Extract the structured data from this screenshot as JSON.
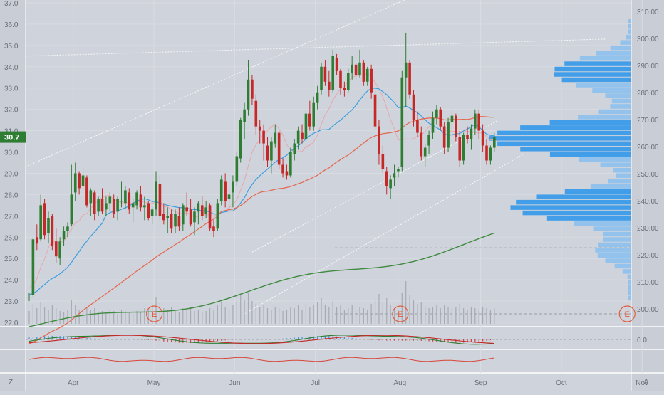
{
  "chart_data": {
    "type": "candlestick",
    "last_price_label": "30.7",
    "left_axis": {
      "ticks": [
        "22.0",
        "23.0",
        "24.0",
        "25.0",
        "26.0",
        "27.0",
        "28.0",
        "29.0",
        "30.0",
        "31.0",
        "32.0",
        "33.0",
        "34.0",
        "35.0",
        "36.0",
        "37.0"
      ],
      "ylim": [
        22.0,
        37.0
      ]
    },
    "right_axis": {
      "ticks": [
        "200.00",
        "210.00",
        "220.00",
        "230.00",
        "240.00",
        "250.00",
        "260.00",
        "270.00",
        "280.00",
        "290.00",
        "300.00",
        "310.00"
      ],
      "ylim": [
        200,
        310
      ]
    },
    "macd_axis": {
      "ticks": [
        "0.0"
      ]
    },
    "x_axis": {
      "months": [
        "Apr",
        "May",
        "Jun",
        "Jul",
        "Aug",
        "Sep",
        "Oct",
        "Nov"
      ],
      "month_day_index": [
        12,
        33,
        54,
        75,
        97,
        118,
        139,
        160
      ]
    },
    "earnings_markers": [
      {
        "label": "E",
        "day": 32
      },
      {
        "label": "E",
        "day": 96
      },
      {
        "label": "E",
        "day": 155
      }
    ],
    "corner_labels": {
      "left": "Z",
      "right": "A"
    },
    "candles": [
      [
        23.2,
        23.4,
        23.0,
        23.2
      ],
      [
        23.3,
        26.0,
        23.2,
        25.9
      ],
      [
        26.0,
        26.6,
        25.4,
        25.7
      ],
      [
        25.9,
        28.0,
        25.8,
        27.5
      ],
      [
        27.6,
        27.8,
        25.9,
        26.1
      ],
      [
        26.2,
        27.2,
        25.7,
        26.9
      ],
      [
        27.0,
        27.1,
        25.4,
        25.6
      ],
      [
        25.8,
        26.4,
        24.8,
        25.1
      ],
      [
        25.0,
        26.0,
        24.7,
        25.8
      ],
      [
        25.9,
        26.5,
        25.6,
        26.3
      ],
      [
        26.3,
        26.7,
        26.0,
        26.5
      ],
      [
        26.6,
        29.4,
        26.5,
        28.0
      ],
      [
        28.1,
        29.5,
        27.7,
        29.0
      ],
      [
        29.0,
        29.1,
        28.0,
        28.3
      ],
      [
        28.4,
        29.3,
        28.2,
        28.9
      ],
      [
        28.8,
        28.9,
        27.4,
        27.5
      ],
      [
        27.6,
        28.3,
        27.0,
        28.2
      ],
      [
        28.1,
        28.2,
        26.8,
        27.1
      ],
      [
        27.2,
        27.9,
        27.0,
        27.8
      ],
      [
        27.8,
        28.3,
        27.1,
        27.2
      ],
      [
        27.3,
        27.9,
        27.0,
        27.6
      ],
      [
        27.6,
        28.1,
        27.2,
        27.9
      ],
      [
        27.8,
        28.0,
        26.9,
        27.1
      ],
      [
        27.2,
        27.9,
        26.8,
        27.8
      ],
      [
        27.7,
        28.6,
        27.4,
        27.7
      ],
      [
        27.6,
        28.4,
        27.3,
        28.2
      ],
      [
        28.1,
        28.3,
        27.1,
        27.3
      ],
      [
        27.4,
        27.8,
        26.7,
        27.6
      ],
      [
        27.5,
        28.2,
        27.3,
        28.1
      ],
      [
        28.0,
        28.4,
        27.2,
        27.4
      ],
      [
        27.4,
        27.9,
        26.8,
        27.5
      ],
      [
        27.6,
        27.7,
        26.8,
        26.9
      ],
      [
        27.0,
        27.4,
        26.6,
        27.3
      ],
      [
        27.3,
        29.1,
        27.0,
        28.6
      ],
      [
        28.5,
        28.9,
        26.8,
        27.0
      ],
      [
        27.1,
        27.6,
        26.6,
        26.8
      ],
      [
        26.9,
        27.4,
        26.2,
        27.0
      ],
      [
        27.1,
        27.3,
        26.2,
        26.4
      ],
      [
        26.5,
        27.3,
        26.2,
        27.1
      ],
      [
        27.0,
        27.4,
        26.3,
        26.5
      ],
      [
        26.6,
        27.6,
        26.3,
        27.5
      ],
      [
        27.4,
        28.1,
        27.0,
        27.2
      ],
      [
        27.3,
        27.8,
        26.5,
        26.6
      ],
      [
        26.7,
        27.4,
        26.1,
        27.2
      ],
      [
        27.2,
        27.7,
        26.6,
        27.6
      ],
      [
        27.5,
        27.9,
        26.8,
        27.0
      ],
      [
        27.1,
        27.7,
        26.9,
        27.4
      ],
      [
        27.5,
        27.6,
        26.3,
        26.4
      ],
      [
        26.5,
        26.8,
        26.0,
        26.3
      ],
      [
        26.4,
        27.8,
        26.3,
        27.6
      ],
      [
        27.7,
        28.9,
        27.5,
        28.7
      ],
      [
        28.6,
        29.0,
        27.4,
        27.7
      ],
      [
        27.8,
        28.3,
        27.2,
        28.0
      ],
      [
        28.1,
        28.9,
        27.4,
        28.6
      ],
      [
        28.6,
        30.0,
        28.4,
        29.8
      ],
      [
        29.7,
        31.6,
        29.5,
        31.5
      ],
      [
        31.4,
        32.3,
        30.6,
        32.0
      ],
      [
        32.0,
        34.3,
        31.7,
        33.4
      ],
      [
        33.4,
        33.6,
        32.2,
        32.5
      ],
      [
        32.4,
        32.7,
        30.8,
        31.2
      ],
      [
        31.2,
        31.5,
        30.4,
        31.0
      ],
      [
        31.0,
        31.3,
        29.6,
        30.4
      ],
      [
        30.3,
        30.7,
        29.3,
        29.6
      ],
      [
        29.6,
        30.7,
        29.0,
        30.5
      ],
      [
        30.4,
        31.3,
        30.2,
        30.9
      ],
      [
        30.9,
        31.0,
        29.2,
        29.4
      ],
      [
        29.4,
        29.7,
        28.8,
        29.0
      ],
      [
        29.1,
        29.4,
        28.7,
        28.9
      ],
      [
        28.9,
        30.2,
        28.8,
        30.0
      ],
      [
        29.9,
        30.6,
        29.6,
        30.4
      ],
      [
        30.4,
        31.2,
        30.1,
        31.0
      ],
      [
        30.9,
        31.3,
        30.4,
        30.6
      ],
      [
        30.6,
        32.0,
        30.5,
        31.8
      ],
      [
        31.8,
        32.4,
        31.0,
        31.2
      ],
      [
        31.2,
        32.6,
        31.0,
        32.3
      ],
      [
        32.3,
        33.1,
        32.0,
        32.8
      ],
      [
        32.9,
        34.2,
        32.7,
        34.0
      ],
      [
        34.0,
        34.3,
        33.1,
        33.3
      ],
      [
        33.3,
        33.8,
        32.6,
        32.9
      ],
      [
        32.9,
        34.8,
        32.8,
        34.5
      ],
      [
        34.4,
        34.6,
        33.6,
        33.8
      ],
      [
        33.8,
        33.9,
        32.7,
        33.0
      ],
      [
        33.0,
        33.3,
        32.6,
        32.9
      ],
      [
        32.9,
        33.9,
        32.8,
        33.7
      ],
      [
        33.7,
        34.5,
        33.4,
        34.1
      ],
      [
        34.1,
        34.2,
        33.4,
        33.6
      ],
      [
        33.6,
        34.8,
        33.5,
        34.2
      ],
      [
        34.2,
        34.3,
        33.1,
        33.3
      ],
      [
        33.3,
        34.0,
        33.1,
        33.9
      ],
      [
        33.9,
        34.1,
        32.5,
        32.8
      ],
      [
        32.7,
        32.9,
        31.0,
        31.2
      ],
      [
        31.2,
        31.5,
        29.4,
        29.9
      ],
      [
        29.9,
        30.3,
        29.0,
        29.2
      ],
      [
        29.1,
        29.3,
        28.0,
        28.4
      ],
      [
        28.3,
        28.9,
        27.8,
        28.7
      ],
      [
        28.8,
        29.4,
        28.4,
        29.0
      ],
      [
        29.1,
        29.3,
        28.8,
        29.2
      ],
      [
        29.3,
        33.8,
        29.1,
        33.5
      ],
      [
        33.5,
        35.6,
        32.1,
        34.2
      ],
      [
        34.2,
        34.3,
        32.5,
        32.7
      ],
      [
        32.7,
        32.9,
        31.2,
        31.5
      ],
      [
        31.5,
        31.9,
        30.7,
        30.9
      ],
      [
        30.9,
        31.2,
        29.6,
        29.8
      ],
      [
        29.8,
        30.4,
        29.3,
        30.2
      ],
      [
        30.3,
        31.0,
        29.9,
        30.8
      ],
      [
        30.9,
        31.9,
        30.6,
        31.6
      ],
      [
        31.6,
        32.2,
        31.3,
        32.0
      ],
      [
        32.0,
        32.1,
        31.0,
        31.2
      ],
      [
        31.2,
        31.4,
        29.9,
        30.2
      ],
      [
        30.2,
        31.6,
        30.0,
        31.4
      ],
      [
        31.4,
        32.0,
        31.0,
        31.7
      ],
      [
        31.7,
        31.8,
        30.5,
        30.7
      ],
      [
        30.7,
        31.0,
        29.3,
        29.6
      ],
      [
        29.6,
        30.9,
        29.4,
        30.8
      ],
      [
        30.8,
        31.2,
        30.4,
        30.6
      ],
      [
        30.6,
        31.3,
        30.1,
        31.1
      ],
      [
        31.1,
        32.0,
        30.8,
        31.8
      ],
      [
        31.8,
        32.0,
        30.6,
        31.0
      ],
      [
        31.0,
        31.3,
        30.0,
        30.3
      ],
      [
        30.3,
        30.6,
        29.4,
        29.6
      ],
      [
        29.6,
        30.3,
        29.4,
        30.2
      ],
      [
        30.2,
        30.9,
        30.0,
        30.7
      ]
    ],
    "volume": [
      0.18,
      0.28,
      0.22,
      0.3,
      0.24,
      0.2,
      0.26,
      0.22,
      0.18,
      0.16,
      0.2,
      0.34,
      0.26,
      0.2,
      0.18,
      0.24,
      0.2,
      0.22,
      0.16,
      0.18,
      0.16,
      0.2,
      0.18,
      0.14,
      0.2,
      0.18,
      0.16,
      0.14,
      0.18,
      0.16,
      0.22,
      0.2,
      0.26,
      0.38,
      0.3,
      0.22,
      0.2,
      0.24,
      0.18,
      0.16,
      0.22,
      0.2,
      0.24,
      0.18,
      0.2,
      0.16,
      0.18,
      0.22,
      0.2,
      0.26,
      0.3,
      0.24,
      0.2,
      0.26,
      0.32,
      0.4,
      0.34,
      0.44,
      0.32,
      0.28,
      0.24,
      0.26,
      0.22,
      0.2,
      0.24,
      0.22,
      0.18,
      0.2,
      0.24,
      0.22,
      0.26,
      0.2,
      0.28,
      0.24,
      0.26,
      0.3,
      0.36,
      0.26,
      0.24,
      0.32,
      0.24,
      0.26,
      0.2,
      0.22,
      0.26,
      0.2,
      0.24,
      0.22,
      0.2,
      0.28,
      0.34,
      0.42,
      0.3,
      0.36,
      0.26,
      0.22,
      0.2,
      0.44,
      0.6,
      0.4,
      0.34,
      0.28,
      0.3,
      0.24,
      0.22,
      0.24,
      0.26,
      0.22,
      0.26,
      0.24,
      0.22,
      0.24,
      0.28,
      0.22,
      0.2,
      0.24,
      0.22,
      0.2,
      0.24,
      0.22,
      0.2,
      0.22
    ]
  }
}
